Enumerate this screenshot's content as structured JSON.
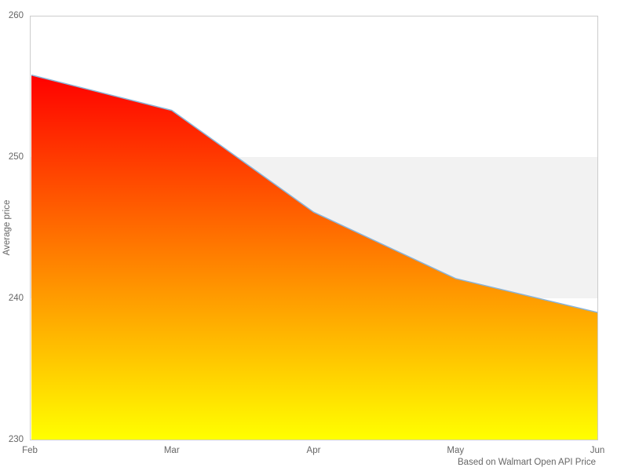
{
  "chart_data": {
    "type": "area",
    "categories": [
      "Feb",
      "Mar",
      "Apr",
      "May",
      "Jun"
    ],
    "values": [
      255.8,
      253.3,
      246.1,
      241.4,
      239.0
    ],
    "series_name": "Average price",
    "title": "",
    "xlabel": "",
    "ylabel": "Average price",
    "ylim": [
      230,
      260
    ],
    "yticks": [
      230,
      240,
      250,
      260
    ],
    "tick_interval": 10,
    "grid": false,
    "legend": false,
    "plot_band": {
      "from": 240,
      "to": 250,
      "color": "#f2f2f2"
    },
    "caption": "Based on Walmart Open API Price",
    "colors": {
      "gradient_top": "#ff0000",
      "gradient_bottom": "#ffff00",
      "line": "#8ab4d8",
      "border": "#cccccc",
      "label": "#666666",
      "background": "#ffffff"
    }
  }
}
